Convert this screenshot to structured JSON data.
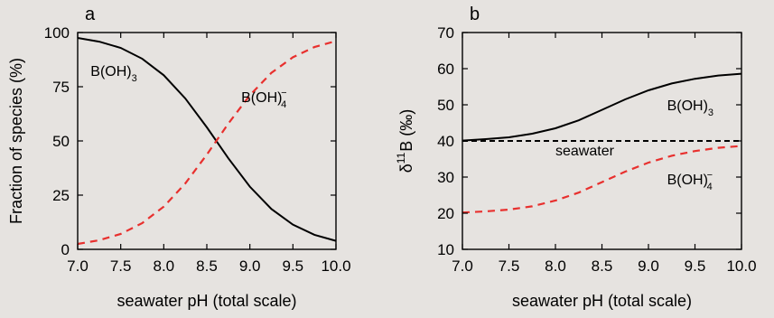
{
  "chart_data": [
    {
      "type": "line",
      "panel_label": "a",
      "xlabel": "seawater pH (total scale)",
      "ylabel": "Fraction of species (%)",
      "xlim": [
        7.0,
        10.0
      ],
      "ylim": [
        0,
        100
      ],
      "xticks": [
        "7.0",
        "7.5",
        "8.0",
        "8.5",
        "9.0",
        "9.5",
        "10.0"
      ],
      "yticks": [
        "0",
        "25",
        "50",
        "75",
        "100"
      ],
      "x": [
        7.0,
        7.25,
        7.5,
        7.75,
        8.0,
        8.25,
        8.5,
        8.75,
        9.0,
        9.25,
        9.5,
        9.75,
        10.0
      ],
      "series": [
        {
          "id": "boh3",
          "color": "#000000",
          "dash": "solid",
          "values": [
            97.5,
            95.8,
            92.9,
            87.9,
            80.3,
            69.6,
            56.3,
            42.0,
            28.9,
            18.6,
            11.4,
            6.7,
            3.9
          ]
        },
        {
          "id": "boh4",
          "color": "#e8302e",
          "dash": "dashed",
          "values": [
            2.5,
            4.2,
            7.1,
            12.1,
            19.7,
            30.4,
            43.7,
            58.0,
            71.1,
            81.4,
            88.6,
            93.3,
            96.1
          ]
        }
      ],
      "annotations": [
        {
          "id": "boh3",
          "base": "B(OH)",
          "sub": "3",
          "sup": "",
          "at": [
            7.15,
            80
          ]
        },
        {
          "id": "boh4",
          "base": "B(OH)",
          "sub": "4",
          "sup": "−",
          "at": [
            8.9,
            68
          ]
        }
      ]
    },
    {
      "type": "line",
      "panel_label": "b",
      "xlabel": "seawater pH (total scale)",
      "ylabel": {
        "pre": "δ",
        "sup": "11",
        "post": "B (‰)"
      },
      "xlim": [
        7.0,
        10.0
      ],
      "ylim": [
        10,
        70
      ],
      "xticks": [
        "7.0",
        "7.5",
        "8.0",
        "8.5",
        "9.0",
        "9.5",
        "10.0"
      ],
      "yticks": [
        "10",
        "20",
        "30",
        "40",
        "50",
        "60",
        "70"
      ],
      "x": [
        7.0,
        7.25,
        7.5,
        7.75,
        8.0,
        8.25,
        8.5,
        8.75,
        9.0,
        9.25,
        9.5,
        9.75,
        10.0
      ],
      "series": [
        {
          "id": "boh3",
          "color": "#000000",
          "dash": "solid",
          "values": [
            40.1,
            40.5,
            41.0,
            42.0,
            43.5,
            45.7,
            48.6,
            51.5,
            54.0,
            55.9,
            57.2,
            58.1,
            58.6
          ]
        },
        {
          "id": "seawater",
          "color": "#000000",
          "dash": "dashed",
          "values": [
            40,
            40,
            40,
            40,
            40,
            40,
            40,
            40,
            40,
            40,
            40,
            40,
            40
          ]
        },
        {
          "id": "boh4",
          "color": "#e8302e",
          "dash": "dashed",
          "values": [
            20.2,
            20.5,
            21.0,
            21.9,
            23.5,
            25.7,
            28.6,
            31.5,
            34.0,
            35.9,
            37.2,
            38.1,
            38.6
          ]
        }
      ],
      "annotations": [
        {
          "id": "boh3",
          "base": "B(OH)",
          "sub": "3",
          "sup": "",
          "at": [
            9.2,
            48.5
          ]
        },
        {
          "id": "seawater",
          "base": "seawater",
          "sub": "",
          "sup": "",
          "at": [
            8.0,
            36
          ]
        },
        {
          "id": "boh4",
          "base": "B(OH)",
          "sub": "4",
          "sup": "−",
          "at": [
            9.2,
            28
          ]
        }
      ]
    }
  ]
}
